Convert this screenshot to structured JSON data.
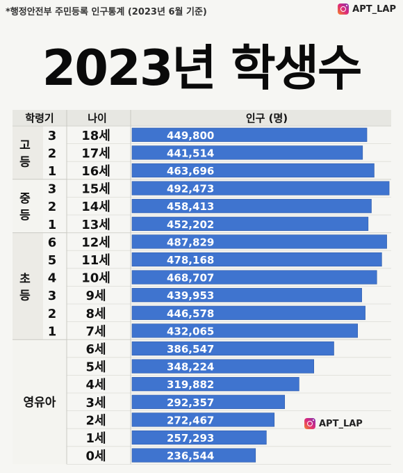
{
  "source_note": "*행정안전부 주민등록 인구통계 (2023년 6월 기준)",
  "brand": "APT_LAP",
  "title": "2023년 학생수",
  "chart_data": {
    "type": "bar",
    "orientation": "horizontal",
    "headers": [
      "학령기",
      "나이",
      "인구 (명)"
    ],
    "groups": [
      {
        "label": "고등",
        "rows": [
          0,
          1,
          2
        ]
      },
      {
        "label": "중등",
        "rows": [
          3,
          4,
          5
        ]
      },
      {
        "label": "초등",
        "rows": [
          6,
          7,
          8,
          9,
          10,
          11
        ]
      },
      {
        "label": "영유아",
        "rows": [
          12,
          13,
          14,
          15,
          16,
          17,
          18
        ]
      }
    ],
    "grades": [
      "3",
      "2",
      "1",
      "3",
      "2",
      "1",
      "6",
      "5",
      "4",
      "3",
      "2",
      "1",
      "",
      "",
      "",
      "",
      "",
      "",
      ""
    ],
    "categories": [
      "18세",
      "17세",
      "16세",
      "15세",
      "14세",
      "13세",
      "12세",
      "11세",
      "10세",
      "9세",
      "8세",
      "7세",
      "6세",
      "5세",
      "4세",
      "3세",
      "2세",
      "1세",
      "0세"
    ],
    "values": [
      449800,
      441514,
      463696,
      492473,
      458413,
      452202,
      487829,
      478168,
      468707,
      439953,
      446578,
      432065,
      386547,
      348224,
      319882,
      292357,
      272467,
      257293,
      236544
    ],
    "value_labels": [
      "449,800",
      "441,514",
      "463,696",
      "492,473",
      "458,413",
      "452,202",
      "487,829",
      "478,168",
      "468,707",
      "439,953",
      "446,578",
      "432,065",
      "386,547",
      "348,224",
      "319,882",
      "292,357",
      "272,467",
      "257,293",
      "236,544"
    ],
    "bar_color": "#3f74cf",
    "xlim": [
      0,
      500000
    ]
  }
}
